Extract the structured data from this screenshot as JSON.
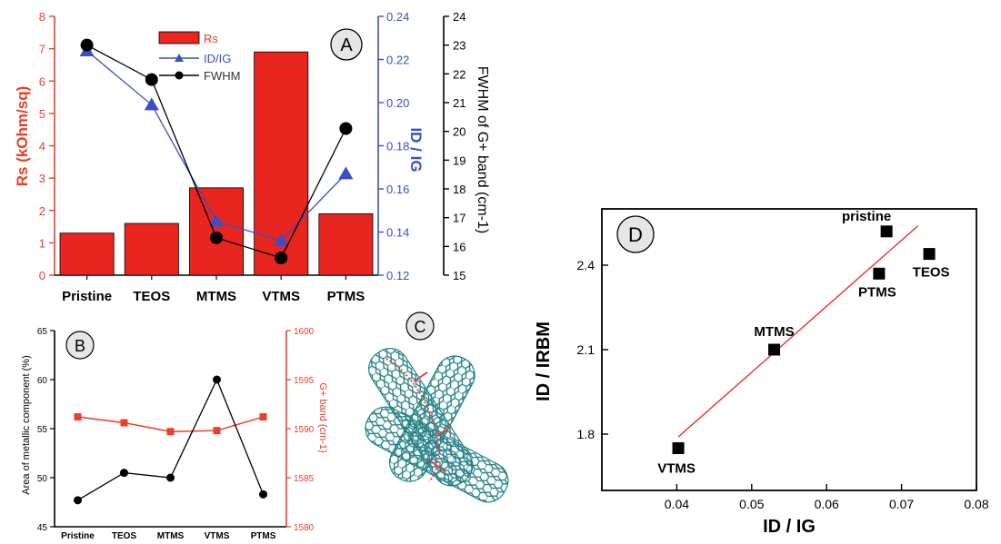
{
  "chart_data": [
    {
      "panel": "A",
      "type": "bar",
      "categories": [
        "Pristine",
        "TEOS",
        "MTMS",
        "VTMS",
        "PTMS"
      ],
      "ylabel": "Rs (kOhm/sq)",
      "ylim": [
        0,
        8
      ],
      "yticks": [
        "0",
        "1",
        "2",
        "3",
        "4",
        "5",
        "6",
        "7",
        "8"
      ],
      "y2label": "ID / IG",
      "y2lim": [
        0.12,
        0.24
      ],
      "y2ticks": [
        "0.12",
        "0.14",
        "0.16",
        "0.18",
        "0.20",
        "0.22",
        "0.24"
      ],
      "y3label": "FWHM of G+ band (cm-1)",
      "y3lim": [
        15,
        24
      ],
      "y3ticks": [
        "15",
        "16",
        "17",
        "18",
        "19",
        "20",
        "21",
        "22",
        "23",
        "24"
      ],
      "legend": [
        "Rs",
        "ID/IG",
        "FWHM"
      ],
      "series": [
        {
          "name": "Rs",
          "type": "bar",
          "axis": "left",
          "color": "#e8251f",
          "values": [
            1.3,
            1.6,
            2.7,
            6.9,
            1.9
          ]
        },
        {
          "name": "ID/IG",
          "type": "line",
          "axis": "right1",
          "color": "#3a4fc4",
          "values": [
            0.224,
            0.199,
            0.145,
            0.136,
            0.167
          ]
        },
        {
          "name": "FWHM",
          "type": "line",
          "axis": "right2",
          "color": "#000000",
          "values": [
            23.0,
            21.8,
            16.3,
            15.6,
            20.1
          ]
        }
      ]
    },
    {
      "panel": "B",
      "type": "line",
      "categories": [
        "Pristine",
        "TEOS",
        "MTMS",
        "VTMS",
        "PTMS"
      ],
      "ylabel": "Area of metallic component (%)",
      "ylim": [
        45,
        65
      ],
      "yticks": [
        "45",
        "50",
        "55",
        "60",
        "65"
      ],
      "y2label": "G+ band (cm-1)",
      "y2lim": [
        1580,
        1600
      ],
      "y2ticks": [
        "1580",
        "1585",
        "1590",
        "1595",
        "1600"
      ],
      "series": [
        {
          "name": "Area of metallic component",
          "axis": "left",
          "color": "#000000",
          "values": [
            47.7,
            50.5,
            50.0,
            60.0,
            48.3
          ]
        },
        {
          "name": "G+ band",
          "axis": "right",
          "color": "#e8402a",
          "values": [
            1591.2,
            1590.6,
            1589.7,
            1589.8,
            1591.2
          ]
        }
      ]
    },
    {
      "panel": "D",
      "type": "scatter",
      "xlabel": "ID / IG",
      "ylabel": "ID / IRBM",
      "xlim": [
        0.03,
        0.08
      ],
      "ylim": [
        1.6,
        2.6
      ],
      "xticks": [
        "0.04",
        "0.05",
        "0.06",
        "0.07",
        "0.08"
      ],
      "yticks": [
        "1.8",
        "2.1",
        "2.4"
      ],
      "points": [
        {
          "label": "pristine",
          "x": 0.068,
          "y": 2.52
        },
        {
          "label": "TEOS",
          "x": 0.0737,
          "y": 2.44
        },
        {
          "label": "PTMS",
          "x": 0.067,
          "y": 2.37
        },
        {
          "label": "MTMS",
          "x": 0.053,
          "y": 2.1
        },
        {
          "label": "VTMS",
          "x": 0.0402,
          "y": 1.75
        }
      ],
      "fit": {
        "x": [
          0.0402,
          0.0722
        ],
        "y": [
          1.79,
          2.54
        ],
        "color": "#e8251f"
      }
    }
  ],
  "panel_labels": {
    "a": "A",
    "b": "B",
    "c": "C",
    "d": "D"
  }
}
